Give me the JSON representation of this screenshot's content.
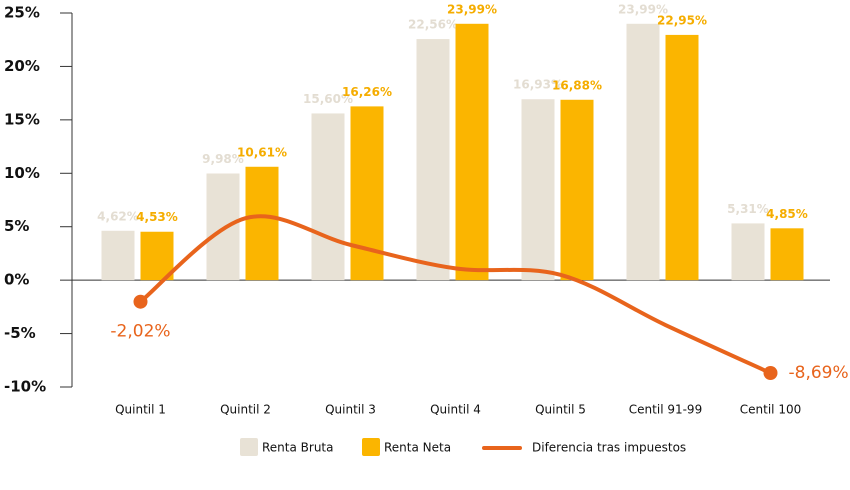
{
  "chart_data": {
    "type": "bar",
    "categories": [
      "Quintil 1",
      "Quintil 2",
      "Quintil 3",
      "Quintil 4",
      "Quintil 5",
      "Centil 91-99",
      "Centil 100"
    ],
    "series": [
      {
        "name": "Renta Bruta",
        "color": "#e8e2d6",
        "label_color": "#e3ddd2",
        "values": [
          4.62,
          9.98,
          15.6,
          22.56,
          16.93,
          23.99,
          5.31
        ],
        "value_labels": [
          "4,62%",
          "9,98%",
          "15,60%",
          "22,56%",
          "16,93%",
          "23,99%",
          "5,31%"
        ]
      },
      {
        "name": "Renta Neta",
        "color": "#fbb500",
        "label_color": "#f5ad00",
        "values": [
          4.53,
          10.61,
          16.26,
          23.99,
          16.88,
          22.95,
          4.85
        ],
        "value_labels": [
          "4,53%",
          "10,61%",
          "16,26%",
          "23,99%",
          "16,88%",
          "22,95%",
          "4,85%"
        ]
      },
      {
        "name": "Diferencia tras impuestos",
        "type": "line",
        "color": "#e8641c",
        "values": [
          -2.02,
          5.8,
          3.3,
          1.1,
          0.5,
          -4.2,
          -8.69
        ],
        "value_labels": [
          "-2,02%",
          null,
          null,
          null,
          null,
          null,
          "-8,69%"
        ]
      }
    ],
    "ylim": [
      -10,
      25
    ],
    "yticks": [
      {
        "value": -10,
        "label": "-10%"
      },
      {
        "value": -5,
        "label": "-5%"
      },
      {
        "value": 0,
        "label": "0%"
      },
      {
        "value": 5,
        "label": "5%"
      },
      {
        "value": 10,
        "label": "10%"
      },
      {
        "value": 15,
        "label": "15%"
      },
      {
        "value": 20,
        "label": "20%"
      },
      {
        "value": 25,
        "label": "25%"
      }
    ],
    "legend": "bottom"
  }
}
